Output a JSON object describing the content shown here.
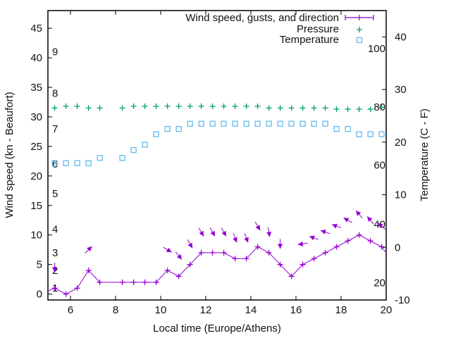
{
  "chart_data": {
    "type": "line",
    "xlabel": "Local time (Europe/Athens)",
    "ylabel": "Wind speed (kn - Beaufort)",
    "y2label": "Temperature (C - F)",
    "xlim": [
      5,
      20
    ],
    "ylim": [
      -1,
      48
    ],
    "y2lim": [
      -10,
      45
    ],
    "x_ticks": [
      "6",
      "8",
      "10",
      "12",
      "14",
      "16",
      "18",
      "20"
    ],
    "x_tick_values": [
      6,
      8,
      10,
      12,
      14,
      16,
      18,
      20
    ],
    "y_ticks": [
      "0",
      "5",
      "10",
      "15",
      "20",
      "25",
      "30",
      "35",
      "40",
      "45"
    ],
    "y_tick_values": [
      0,
      5,
      10,
      15,
      20,
      25,
      30,
      35,
      40,
      45
    ],
    "y2_ticks": [
      "-10",
      "0",
      "10",
      "20",
      "30",
      "40"
    ],
    "y2_tick_values": [
      -10,
      0,
      10,
      20,
      30,
      40
    ],
    "beaufort_labels": [
      {
        "text": "1",
        "y": 1
      },
      {
        "text": "2",
        "y": 4
      },
      {
        "text": "3",
        "y": 7
      },
      {
        "text": "4",
        "y": 11
      },
      {
        "text": "5",
        "y": 17
      },
      {
        "text": "6",
        "y": 22
      },
      {
        "text": "7",
        "y": 28
      },
      {
        "text": "8",
        "y": 34
      },
      {
        "text": "9",
        "y": 41
      }
    ],
    "fahrenheit_labels": [
      {
        "text": "20",
        "y2": -6.7
      },
      {
        "text": "40",
        "y2": 4.4
      },
      {
        "text": "60",
        "y2": 15.6
      },
      {
        "text": "80",
        "y2": 26.7
      },
      {
        "text": "100",
        "y2": 37.8
      }
    ],
    "legend": {
      "position": "top-right",
      "entries": [
        "Wind speed, gusts, and direction",
        "Pressure",
        "Temperature"
      ]
    },
    "series": [
      {
        "name": "Wind speed, gusts, and direction",
        "color": "#9400d3",
        "x": [
          5.3,
          5.8,
          6.3,
          6.8,
          7.3,
          8.3,
          8.8,
          9.3,
          9.8,
          10.3,
          10.8,
          11.3,
          11.8,
          12.3,
          12.8,
          13.3,
          13.8,
          14.3,
          14.8,
          15.3,
          15.8,
          16.3,
          16.8,
          17.3,
          17.8,
          18.3,
          18.8,
          19.3,
          19.8
        ],
        "values": [
          1,
          0,
          1,
          4,
          2,
          2,
          2,
          2,
          2,
          4,
          3,
          5,
          7,
          7,
          7,
          6,
          6,
          8,
          7,
          5,
          3,
          5,
          6,
          7,
          8,
          9,
          10,
          9,
          8
        ],
        "direction_deg": [
          0,
          null,
          null,
          135,
          null,
          null,
          null,
          null,
          null,
          60,
          40,
          30,
          30,
          30,
          30,
          20,
          20,
          30,
          10,
          0,
          null,
          280,
          250,
          250,
          250,
          240,
          220,
          220,
          230
        ]
      },
      {
        "name": "Pressure",
        "color": "#009e73",
        "x": [
          5.3,
          5.8,
          6.3,
          6.8,
          7.3,
          8.3,
          8.8,
          9.3,
          9.8,
          10.3,
          10.8,
          11.3,
          11.8,
          12.3,
          12.8,
          13.3,
          13.8,
          14.3,
          14.8,
          15.3,
          15.8,
          16.3,
          16.8,
          17.3,
          17.8,
          18.3,
          18.8,
          19.3,
          19.8
        ],
        "values": [
          31.5,
          31.8,
          31.8,
          31.5,
          31.5,
          31.5,
          31.8,
          31.8,
          31.8,
          31.8,
          31.8,
          31.8,
          31.8,
          31.8,
          31.8,
          31.8,
          31.8,
          31.8,
          31.5,
          31.5,
          31.5,
          31.5,
          31.5,
          31.5,
          31.3,
          31.3,
          31.3,
          31.3,
          31.6
        ]
      },
      {
        "name": "Temperature",
        "color": "#56b4e9",
        "x": [
          5.3,
          5.8,
          6.3,
          6.8,
          7.3,
          8.3,
          8.8,
          9.3,
          9.8,
          10.3,
          10.8,
          11.3,
          11.8,
          12.3,
          12.8,
          13.3,
          13.8,
          14.3,
          14.8,
          15.3,
          15.8,
          16.3,
          16.8,
          17.3,
          17.8,
          18.3,
          18.8,
          19.3,
          19.8
        ],
        "values": [
          16,
          16,
          16,
          16,
          17,
          17,
          18.5,
          19.5,
          21.5,
          22.5,
          22.5,
          23.5,
          23.5,
          23.5,
          23.5,
          23.5,
          23.5,
          23.5,
          23.5,
          23.5,
          23.5,
          23.5,
          23.5,
          23.5,
          22.5,
          22.5,
          21.5,
          21.5,
          21.5
        ]
      }
    ]
  }
}
